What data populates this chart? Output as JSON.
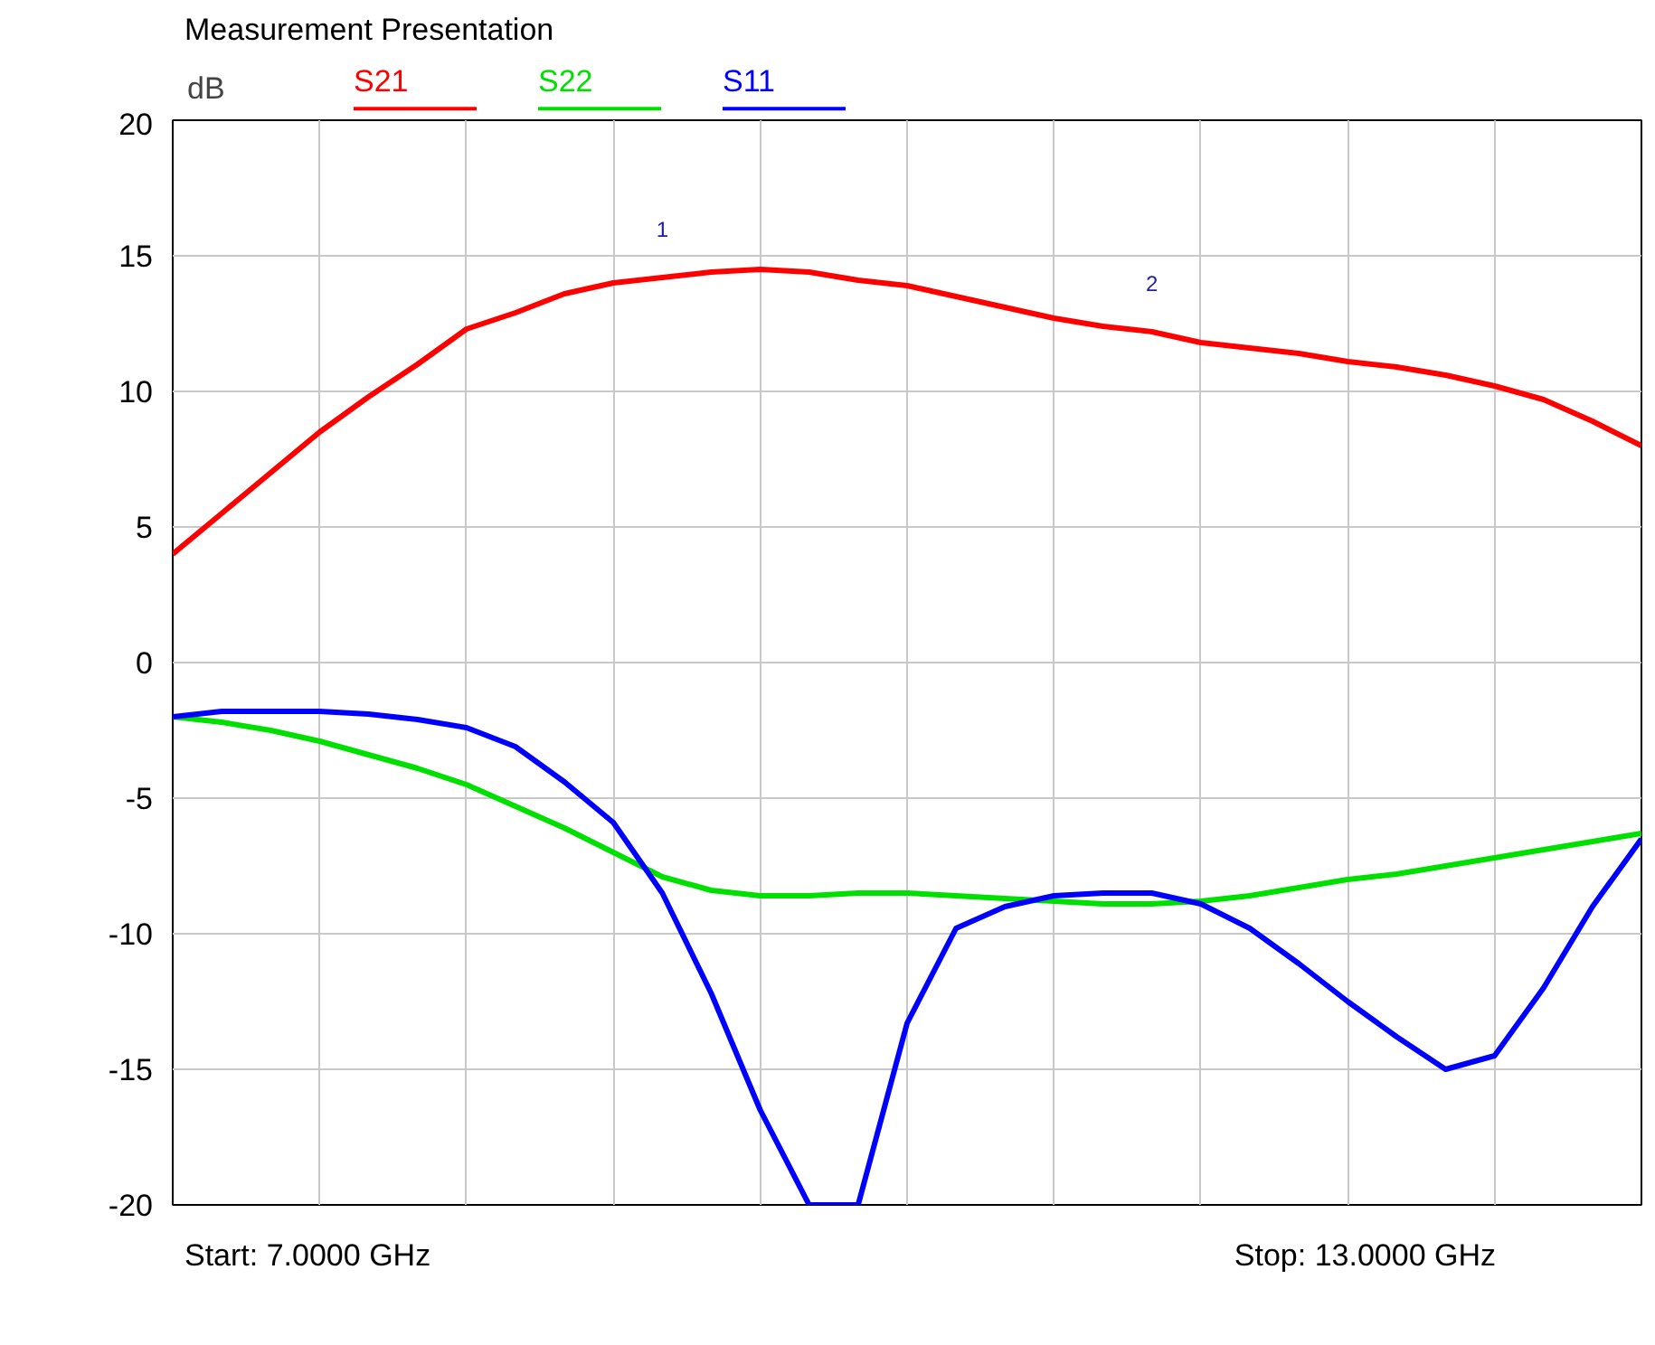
{
  "chart_data": {
    "type": "line",
    "title": "Measurement Presentation",
    "ylabel": "dB",
    "categories": [
      null,
      null,
      null,
      null,
      null,
      null,
      null,
      null,
      null,
      null,
      null,
      null,
      null,
      null,
      null,
      null,
      null,
      null,
      null,
      null,
      null,
      null,
      null,
      null,
      null,
      null,
      null,
      null,
      null,
      null,
      null
    ],
    "ylim": [
      -20,
      20
    ],
    "yticks": [
      -20,
      -15,
      -10,
      -5,
      0,
      5,
      10,
      15,
      20
    ],
    "tick_labels": "y",
    "grid": true,
    "legend": "top left",
    "line_style": "solid",
    "series": [
      {
        "name": "S21",
        "color": "#ff0000",
        "values": [
          4.0,
          5.5,
          7.0,
          8.5,
          9.8,
          11.0,
          12.3,
          12.9,
          13.6,
          14.0,
          14.2,
          14.4,
          14.5,
          14.4,
          14.1,
          13.9,
          13.5,
          13.1,
          12.7,
          12.4,
          12.2,
          11.8,
          11.6,
          11.4,
          11.1,
          10.9,
          10.6,
          10.2,
          9.7,
          8.9,
          8.0
        ]
      },
      {
        "name": "S22",
        "color": "#00e000",
        "values": [
          -2.0,
          -2.2,
          -2.5,
          -2.9,
          -3.4,
          -3.9,
          -4.5,
          -5.3,
          -6.1,
          -7.0,
          -7.9,
          -8.4,
          -8.6,
          -8.6,
          -8.5,
          -8.5,
          -8.6,
          -8.7,
          -8.8,
          -8.9,
          -8.9,
          -8.8,
          -8.6,
          -8.3,
          -8.0,
          -7.8,
          -7.5,
          -7.2,
          -6.9,
          -6.6,
          -6.3
        ]
      },
      {
        "name": "S11",
        "color": "#0000ff",
        "values": [
          -2.0,
          -1.8,
          -1.8,
          -1.8,
          -1.9,
          -2.1,
          -2.4,
          -3.1,
          -4.4,
          -5.9,
          -8.5,
          -12.2,
          -16.5,
          -20,
          -20,
          -13.3,
          -9.8,
          -9.0,
          -8.6,
          -8.5,
          -8.5,
          -8.9,
          -9.8,
          -11.1,
          -12.5,
          -13.8,
          -15.0,
          -14.5,
          -12.0,
          -9.0,
          -6.5
        ]
      }
    ],
    "annotations": [
      {
        "text": "1",
        "y": 14.2
      },
      {
        "text": "2",
        "y": 12.2
      },
      "Start: 7.0000 GHz",
      "Stop: 13.0000 GHz"
    ]
  }
}
